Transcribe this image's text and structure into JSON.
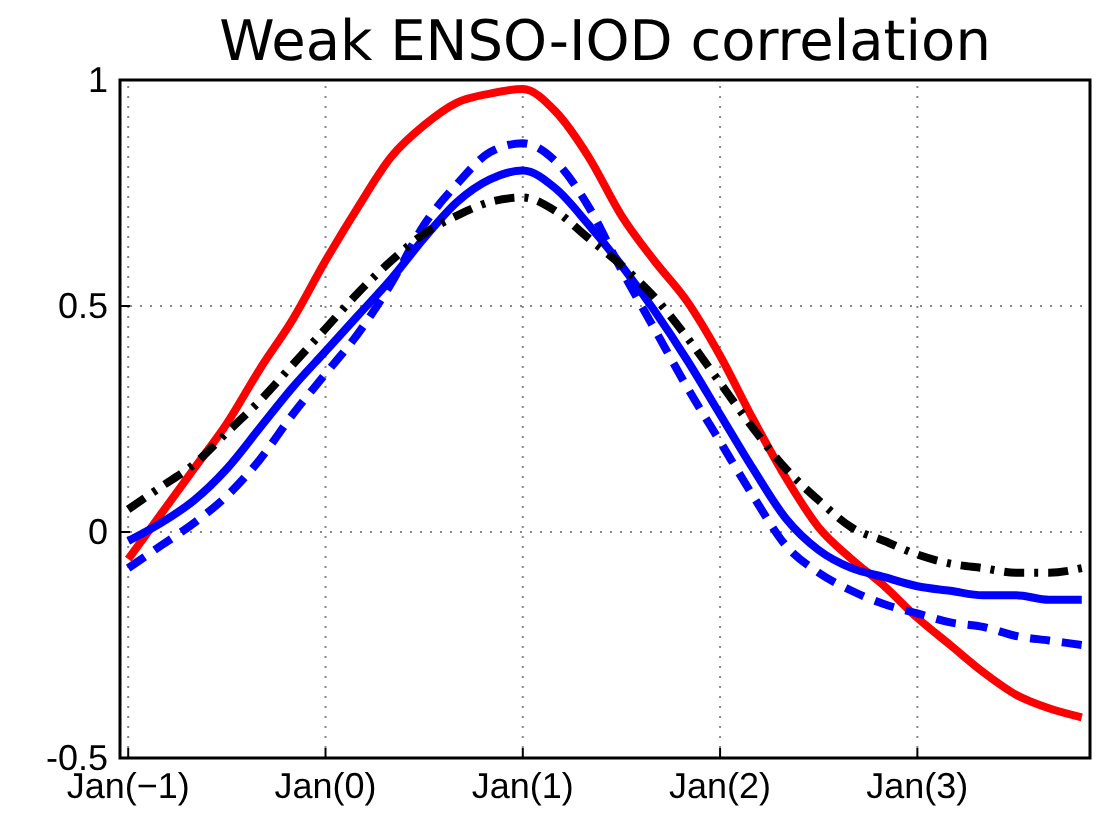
{
  "chart_data": {
    "type": "line",
    "title": "Weak ENSO-IOD correlation",
    "ylim": [
      -0.5,
      1
    ],
    "categories": [
      "Jan(−1)",
      null,
      null,
      null,
      null,
      null,
      "Jan(0)",
      null,
      null,
      null,
      null,
      null,
      "Jan(1)",
      null,
      null,
      null,
      null,
      null,
      "Jan(2)",
      null,
      null,
      null,
      null,
      null,
      "Jan(3)",
      null,
      null,
      null,
      null,
      null
    ],
    "yticks": [
      -0.5,
      0,
      0.5,
      1
    ],
    "grid": true,
    "marker": "none",
    "series": [
      {
        "color": "#ff0000",
        "line_style": "solid",
        "values": [
          -0.06,
          0.04,
          0.14,
          0.24,
          0.36,
          0.47,
          0.6,
          0.72,
          0.83,
          0.9,
          0.95,
          0.97,
          0.98,
          0.93,
          0.83,
          0.7,
          0.6,
          0.51,
          0.39,
          0.25,
          0.12,
          0.01,
          -0.06,
          -0.12,
          -0.19,
          -0.25,
          -0.31,
          -0.36,
          -0.39,
          -0.41
        ]
      },
      {
        "color": "#0000ff",
        "line_style": "solid",
        "values": [
          -0.02,
          0.02,
          0.07,
          0.14,
          0.23,
          0.32,
          0.4,
          0.48,
          0.56,
          0.65,
          0.73,
          0.78,
          0.8,
          0.76,
          0.68,
          0.59,
          0.49,
          0.38,
          0.26,
          0.14,
          0.03,
          -0.04,
          -0.08,
          -0.1,
          -0.12,
          -0.13,
          -0.14,
          -0.14,
          -0.15,
          -0.15
        ]
      },
      {
        "color": "#0000ff",
        "line_style": "dashed",
        "values": [
          -0.08,
          -0.03,
          0.02,
          0.08,
          0.16,
          0.26,
          0.35,
          0.44,
          0.55,
          0.68,
          0.77,
          0.84,
          0.86,
          0.82,
          0.72,
          0.58,
          0.45,
          0.32,
          0.2,
          0.08,
          -0.03,
          -0.09,
          -0.13,
          -0.16,
          -0.18,
          -0.2,
          -0.21,
          -0.23,
          -0.24,
          -0.25
        ]
      },
      {
        "color": "#000000",
        "line_style": "dashdot",
        "values": [
          0.05,
          0.1,
          0.15,
          0.22,
          0.29,
          0.37,
          0.45,
          0.53,
          0.6,
          0.66,
          0.7,
          0.73,
          0.74,
          0.71,
          0.65,
          0.59,
          0.52,
          0.43,
          0.33,
          0.23,
          0.14,
          0.07,
          0.01,
          -0.02,
          -0.05,
          -0.07,
          -0.08,
          -0.09,
          -0.09,
          -0.08
        ]
      }
    ]
  }
}
